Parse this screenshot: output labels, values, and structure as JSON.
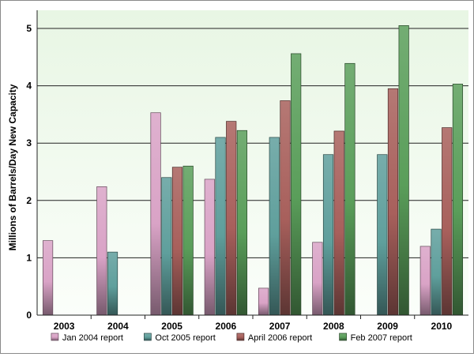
{
  "chart_data": {
    "type": "bar",
    "title": "",
    "xlabel": "",
    "ylabel": "Millions of Barrels/Day New Capacity",
    "categories": [
      "2003",
      "2004",
      "2005",
      "2006",
      "2007",
      "2008",
      "2009",
      "2010"
    ],
    "ylim": [
      0,
      5
    ],
    "yticks": [
      "0",
      "1",
      "2",
      "3",
      "4",
      "5"
    ],
    "grid": "horizontal",
    "legend_position": "bottom",
    "series": [
      {
        "name": "Jan 2004 report",
        "color": "#d9a3c6",
        "values": [
          1.3,
          2.24,
          3.53,
          2.37,
          0.47,
          1.27,
          null,
          1.2
        ]
      },
      {
        "name": "Oct 2005 report",
        "color": "#5f9f9c",
        "values": [
          null,
          1.1,
          2.4,
          3.1,
          3.1,
          2.8,
          2.8,
          1.5
        ]
      },
      {
        "name": "April 2006 report",
        "color": "#a8605c",
        "values": [
          null,
          null,
          2.58,
          3.38,
          3.74,
          3.21,
          3.95,
          3.27
        ]
      },
      {
        "name": "Feb 2007 report",
        "color": "#5a9e5a",
        "values": [
          null,
          null,
          2.6,
          3.22,
          4.56,
          4.39,
          5.05,
          4.03
        ]
      }
    ]
  }
}
